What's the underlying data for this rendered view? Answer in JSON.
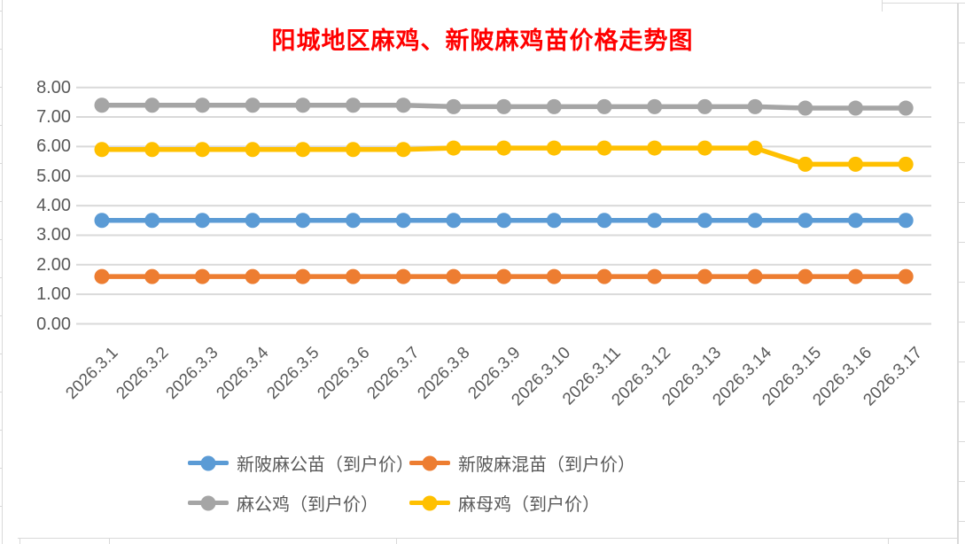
{
  "chart_data": {
    "type": "line",
    "title": "阳城地区麻鸡、新陂麻鸡苗价格走势图",
    "title_color": "#FF0000",
    "categories": [
      "2026.3.1",
      "2026.3.2",
      "2026.3.3",
      "2026.3.4",
      "2026.3.5",
      "2026.3.6",
      "2026.3.7",
      "2026.3.8",
      "2026.3.9",
      "2026.3.10",
      "2026.3.11",
      "2026.3.12",
      "2026.3.13",
      "2026.3.14",
      "2026.3.15",
      "2026.3.16",
      "2026.3.17"
    ],
    "series": [
      {
        "name": "新陂麻公苗（到户价）",
        "color": "#5B9BD5",
        "values": [
          3.5,
          3.5,
          3.5,
          3.5,
          3.5,
          3.5,
          3.5,
          3.5,
          3.5,
          3.5,
          3.5,
          3.5,
          3.5,
          3.5,
          3.5,
          3.5,
          3.5
        ]
      },
      {
        "name": "新陂麻混苗（到户价）",
        "color": "#ED7D31",
        "values": [
          1.6,
          1.6,
          1.6,
          1.6,
          1.6,
          1.6,
          1.6,
          1.6,
          1.6,
          1.6,
          1.6,
          1.6,
          1.6,
          1.6,
          1.6,
          1.6,
          1.6
        ]
      },
      {
        "name": "麻公鸡（到户价）",
        "color": "#A5A5A5",
        "values": [
          7.4,
          7.4,
          7.4,
          7.4,
          7.4,
          7.4,
          7.4,
          7.35,
          7.35,
          7.35,
          7.35,
          7.35,
          7.35,
          7.35,
          7.3,
          7.3,
          7.3
        ]
      },
      {
        "name": "麻母鸡（到户价）",
        "color": "#FFC000",
        "values": [
          5.9,
          5.9,
          5.9,
          5.9,
          5.9,
          5.9,
          5.9,
          5.95,
          5.95,
          5.95,
          5.95,
          5.95,
          5.95,
          5.95,
          5.4,
          5.4,
          5.4
        ]
      }
    ],
    "xlabel": "",
    "ylabel": "",
    "ylim": [
      0,
      8
    ],
    "y_ticks": [
      "0.00",
      "1.00",
      "2.00",
      "3.00",
      "4.00",
      "5.00",
      "6.00",
      "7.00",
      "8.00"
    ],
    "grid": "horizontal",
    "gridline_color": "#D9D9D9",
    "axis_text_color": "#595959",
    "legend_position": "bottom",
    "marker": "circle"
  }
}
